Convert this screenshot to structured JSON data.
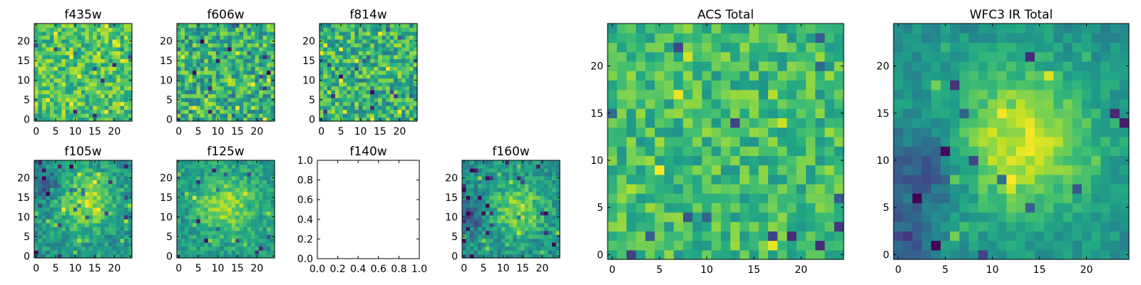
{
  "colormap": "viridis",
  "colors": {
    "frame": "#000000",
    "background": "#ffffff"
  },
  "chart_data": [
    {
      "type": "heatmap",
      "title": "f435w",
      "grid_size": [
        25,
        25
      ],
      "xlim": [
        -0.5,
        24.5
      ],
      "ylim": [
        -0.5,
        24.5
      ],
      "xticks": [
        0,
        5,
        10,
        15,
        20
      ],
      "yticks": [
        0,
        5,
        10,
        15,
        20
      ],
      "pattern": "noise",
      "seed": 11,
      "mean": 0.72,
      "spread": 0.2,
      "blobs": []
    },
    {
      "type": "heatmap",
      "title": "f606w",
      "grid_size": [
        25,
        25
      ],
      "xlim": [
        -0.5,
        24.5
      ],
      "ylim": [
        -0.5,
        24.5
      ],
      "xticks": [
        0,
        5,
        10,
        15,
        20
      ],
      "yticks": [
        0,
        5,
        10,
        15,
        20
      ],
      "pattern": "noise",
      "seed": 23,
      "mean": 0.64,
      "spread": 0.24,
      "blobs": []
    },
    {
      "type": "heatmap",
      "title": "f814w",
      "grid_size": [
        25,
        25
      ],
      "xlim": [
        -0.5,
        24.5
      ],
      "ylim": [
        -0.5,
        24.5
      ],
      "xticks": [
        0,
        5,
        10,
        15,
        20
      ],
      "yticks": [
        0,
        5,
        10,
        15,
        20
      ],
      "pattern": "noise",
      "seed": 37,
      "mean": 0.64,
      "spread": 0.24,
      "blobs": []
    },
    {
      "type": "heatmap",
      "title": "f105w",
      "grid_size": [
        25,
        25
      ],
      "xlim": [
        -0.5,
        24.5
      ],
      "ylim": [
        -0.5,
        24.5
      ],
      "xticks": [
        0,
        5,
        10,
        15,
        20
      ],
      "yticks": [
        0,
        5,
        10,
        15,
        20
      ],
      "pattern": "source",
      "seed": 41,
      "mean": 0.52,
      "spread": 0.14,
      "blobs": [
        {
          "cx": 13,
          "cy": 14,
          "sigma": 5,
          "amp": 0.35
        },
        {
          "cx": 3,
          "cy": 18,
          "sigma": 2.5,
          "amp": -0.28
        }
      ]
    },
    {
      "type": "heatmap",
      "title": "f125w",
      "grid_size": [
        25,
        25
      ],
      "xlim": [
        -0.5,
        24.5
      ],
      "ylim": [
        -0.5,
        24.5
      ],
      "xticks": [
        0,
        5,
        10,
        15,
        20
      ],
      "yticks": [
        0,
        5,
        10,
        15,
        20
      ],
      "pattern": "source",
      "seed": 53,
      "mean": 0.55,
      "spread": 0.13,
      "blobs": [
        {
          "cx": 12,
          "cy": 13,
          "sigma": 5,
          "amp": 0.3
        }
      ]
    },
    {
      "type": "empty",
      "title": "f140w",
      "xlim": [
        0,
        1
      ],
      "ylim": [
        0,
        1
      ],
      "xticks": [
        "0.0",
        "0.2",
        "0.4",
        "0.6",
        "0.8",
        "1.0"
      ],
      "yticks": [
        "0.0",
        "0.2",
        "0.4",
        "0.6",
        "0.8",
        "1.0"
      ]
    },
    {
      "type": "heatmap",
      "title": "f160w",
      "grid_size": [
        25,
        25
      ],
      "xlim": [
        -0.5,
        24.5
      ],
      "ylim": [
        -0.5,
        24.5
      ],
      "xticks": [
        0,
        5,
        10,
        15,
        20
      ],
      "yticks": [
        0,
        5,
        10,
        15,
        20
      ],
      "pattern": "source",
      "seed": 67,
      "mean": 0.5,
      "spread": 0.14,
      "blobs": [
        {
          "cx": 14,
          "cy": 12,
          "sigma": 5,
          "amp": 0.32
        },
        {
          "cx": 1,
          "cy": 10,
          "sigma": 2.5,
          "amp": -0.3
        }
      ]
    },
    {
      "type": "heatmap",
      "title": "ACS Total",
      "grid_size": [
        25,
        25
      ],
      "xlim": [
        -0.5,
        24.5
      ],
      "ylim": [
        -0.5,
        24.5
      ],
      "xticks": [
        0,
        5,
        10,
        15,
        20
      ],
      "yticks": [
        0,
        5,
        10,
        15,
        20
      ],
      "pattern": "noise",
      "seed": 79,
      "mean": 0.68,
      "spread": 0.17,
      "blobs": []
    },
    {
      "type": "heatmap",
      "title": "WFC3 IR Total",
      "grid_size": [
        25,
        25
      ],
      "xlim": [
        -0.5,
        24.5
      ],
      "ylim": [
        -0.5,
        24.5
      ],
      "xticks": [
        0,
        5,
        10,
        15,
        20
      ],
      "yticks": [
        0,
        5,
        10,
        15,
        20
      ],
      "pattern": "source",
      "seed": 97,
      "mean": 0.5,
      "spread": 0.09,
      "blobs": [
        {
          "cx": 13,
          "cy": 12,
          "sigma": 5.5,
          "amp": 0.42
        },
        {
          "cx": 3,
          "cy": 9,
          "sigma": 3,
          "amp": -0.3
        },
        {
          "cx": 1,
          "cy": 2,
          "sigma": 2,
          "amp": -0.25
        }
      ]
    }
  ]
}
